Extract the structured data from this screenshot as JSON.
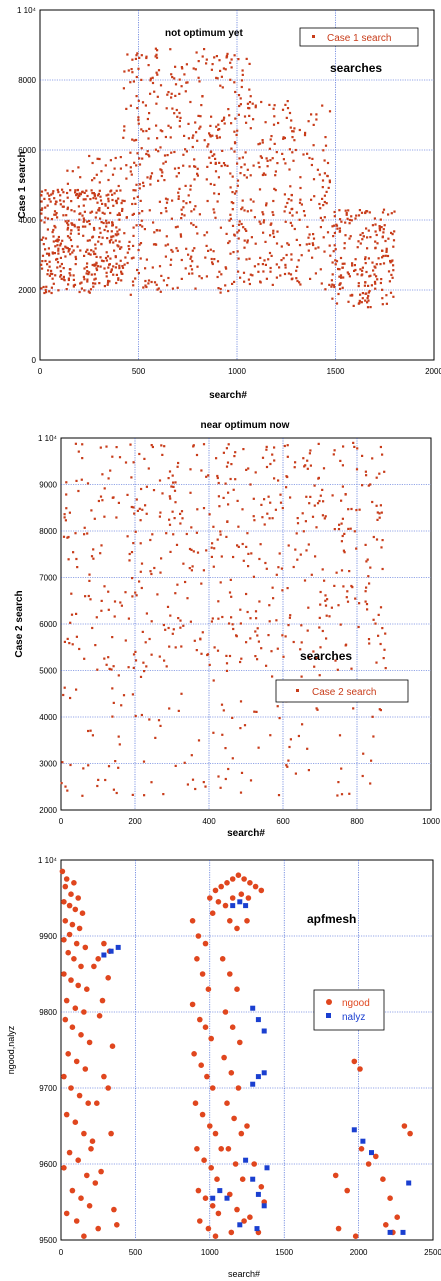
{
  "colors": {
    "case": "#c83c1a",
    "grid": "#2a4fcf",
    "nalyz": "#1a3fd0",
    "ngood": "#e0461e"
  },
  "chart_data": [
    {
      "type": "scatter",
      "title": "not optimum yet",
      "annotation": "searches",
      "xlabel": "search#",
      "ylabel": "Case 1 search",
      "xlim": [
        0,
        2000
      ],
      "ylim": [
        0,
        10000
      ],
      "xticks": [
        "0",
        "500",
        "1000",
        "1500",
        "2000"
      ],
      "yticks": [
        "0",
        "2000",
        "4000",
        "6000",
        "8000",
        "1 10⁴"
      ],
      "legend_position": "top-right",
      "series": [
        {
          "name": "Case 1 search",
          "marker": "square-small",
          "clusters": [
            {
              "x": [
                0,
                420
              ],
              "y": [
                1900,
                4900
              ],
              "density": 340
            },
            {
              "x": [
                80,
                430
              ],
              "y": [
                2400,
                5900
              ],
              "density": 90
            },
            {
              "x": [
                420,
                1080
              ],
              "y": [
                1800,
                8900
              ],
              "density": 520
            },
            {
              "x": [
                1080,
                1480
              ],
              "y": [
                2000,
                7400
              ],
              "density": 230
            },
            {
              "x": [
                1480,
                1800
              ],
              "y": [
                1500,
                4300
              ],
              "density": 210
            }
          ]
        }
      ]
    },
    {
      "type": "scatter",
      "title": "near optimum now",
      "annotation": "searches",
      "xlabel": "search#",
      "ylabel": "Case 2 search",
      "xlim": [
        0,
        1000
      ],
      "ylim": [
        2000,
        10000
      ],
      "xticks": [
        "0",
        "200",
        "400",
        "600",
        "800",
        "1000"
      ],
      "yticks": [
        "2000",
        "3000",
        "4000",
        "5000",
        "6000",
        "7000",
        "8000",
        "9000",
        "1 10⁴"
      ],
      "legend_position": "center-right",
      "series": [
        {
          "name": "Case 2 search",
          "marker": "square-small",
          "clusters": [
            {
              "x": [
                0,
                880
              ],
              "y": [
                5000,
                9900
              ],
              "density": 560
            },
            {
              "x": [
                0,
                880
              ],
              "y": [
                2300,
                5000
              ],
              "density": 120
            }
          ]
        }
      ]
    },
    {
      "type": "scatter",
      "title": "",
      "annotation": "apfmesh",
      "xlabel": "search#",
      "ylabel": "ngood,nalyz",
      "xlim": [
        0,
        2600
      ],
      "ylim": [
        9500,
        10000
      ],
      "xticks": [
        "0",
        "500",
        "1000",
        "1500",
        "2000",
        "2500"
      ],
      "yticks": [
        "9500",
        "9600",
        "9700",
        "9800",
        "9900",
        "1 10⁴"
      ],
      "legend_position": "right",
      "series": [
        {
          "name": "ngood",
          "marker": "circle",
          "points": [
            [
              10,
              9985
            ],
            [
              40,
              9975
            ],
            [
              90,
              9970
            ],
            [
              30,
              9965
            ],
            [
              70,
              9955
            ],
            [
              120,
              9950
            ],
            [
              20,
              9945
            ],
            [
              60,
              9940
            ],
            [
              100,
              9935
            ],
            [
              150,
              9930
            ],
            [
              30,
              9920
            ],
            [
              80,
              9915
            ],
            [
              130,
              9910
            ],
            [
              60,
              9902
            ],
            [
              20,
              9895
            ],
            [
              110,
              9890
            ],
            [
              170,
              9885
            ],
            [
              50,
              9878
            ],
            [
              90,
              9870
            ],
            [
              140,
              9860
            ],
            [
              20,
              9850
            ],
            [
              70,
              9842
            ],
            [
              120,
              9835
            ],
            [
              180,
              9830
            ],
            [
              40,
              9815
            ],
            [
              100,
              9805
            ],
            [
              160,
              9800
            ],
            [
              30,
              9790
            ],
            [
              80,
              9780
            ],
            [
              140,
              9770
            ],
            [
              200,
              9760
            ],
            [
              50,
              9745
            ],
            [
              110,
              9735
            ],
            [
              170,
              9725
            ],
            [
              20,
              9715
            ],
            [
              70,
              9700
            ],
            [
              130,
              9690
            ],
            [
              190,
              9680
            ],
            [
              40,
              9665
            ],
            [
              100,
              9655
            ],
            [
              160,
              9640
            ],
            [
              220,
              9630
            ],
            [
              60,
              9615
            ],
            [
              120,
              9605
            ],
            [
              20,
              9595
            ],
            [
              180,
              9585
            ],
            [
              240,
              9575
            ],
            [
              80,
              9565
            ],
            [
              140,
              9555
            ],
            [
              200,
              9545
            ],
            [
              40,
              9535
            ],
            [
              110,
              9525
            ],
            [
              260,
              9515
            ],
            [
              160,
              9505
            ],
            [
              300,
              9890
            ],
            [
              340,
              9880
            ],
            [
              260,
              9870
            ],
            [
              330,
              9845
            ],
            [
              290,
              9815
            ],
            [
              360,
              9755
            ],
            [
              300,
              9715
            ],
            [
              250,
              9680
            ],
            [
              350,
              9640
            ],
            [
              280,
              9590
            ],
            [
              370,
              9540
            ],
            [
              230,
              9860
            ],
            [
              270,
              9795
            ],
            [
              330,
              9700
            ],
            [
              210,
              9620
            ],
            [
              390,
              9520
            ],
            [
              920,
              9920
            ],
            [
              960,
              9900
            ],
            [
              1010,
              9890
            ],
            [
              950,
              9870
            ],
            [
              990,
              9850
            ],
            [
              1030,
              9830
            ],
            [
              920,
              9810
            ],
            [
              970,
              9790
            ],
            [
              1010,
              9780
            ],
            [
              1050,
              9765
            ],
            [
              930,
              9745
            ],
            [
              980,
              9730
            ],
            [
              1020,
              9715
            ],
            [
              1060,
              9700
            ],
            [
              940,
              9680
            ],
            [
              990,
              9665
            ],
            [
              1040,
              9650
            ],
            [
              1080,
              9640
            ],
            [
              950,
              9620
            ],
            [
              1000,
              9605
            ],
            [
              1050,
              9595
            ],
            [
              1090,
              9580
            ],
            [
              960,
              9565
            ],
            [
              1010,
              9555
            ],
            [
              1060,
              9545
            ],
            [
              1100,
              9535
            ],
            [
              970,
              9525
            ],
            [
              1030,
              9515
            ],
            [
              1080,
              9505
            ],
            [
              1120,
              9620
            ],
            [
              1040,
              9950
            ],
            [
              1080,
              9960
            ],
            [
              1120,
              9965
            ],
            [
              1160,
              9970
            ],
            [
              1200,
              9975
            ],
            [
              1240,
              9980
            ],
            [
              1280,
              9975
            ],
            [
              1320,
              9970
            ],
            [
              1360,
              9965
            ],
            [
              1400,
              9960
            ],
            [
              1100,
              9945
            ],
            [
              1150,
              9940
            ],
            [
              1200,
              9950
            ],
            [
              1260,
              9955
            ],
            [
              1310,
              9950
            ],
            [
              1060,
              9930
            ],
            [
              1180,
              9920
            ],
            [
              1230,
              9910
            ],
            [
              1300,
              9920
            ],
            [
              1130,
              9870
            ],
            [
              1180,
              9850
            ],
            [
              1230,
              9830
            ],
            [
              1150,
              9800
            ],
            [
              1200,
              9780
            ],
            [
              1250,
              9760
            ],
            [
              1140,
              9740
            ],
            [
              1190,
              9720
            ],
            [
              1240,
              9700
            ],
            [
              1160,
              9680
            ],
            [
              1210,
              9660
            ],
            [
              1260,
              9640
            ],
            [
              1170,
              9620
            ],
            [
              1220,
              9600
            ],
            [
              1270,
              9580
            ],
            [
              1180,
              9560
            ],
            [
              1230,
              9540
            ],
            [
              1280,
              9525
            ],
            [
              1190,
              9510
            ],
            [
              1350,
              9600
            ],
            [
              1400,
              9570
            ],
            [
              1320,
              9530
            ],
            [
              1380,
              9510
            ],
            [
              1420,
              9550
            ],
            [
              1300,
              9650
            ],
            [
              2050,
              9735
            ],
            [
              2090,
              9725
            ],
            [
              1920,
              9585
            ],
            [
              2000,
              9565
            ],
            [
              2100,
              9620
            ],
            [
              2200,
              9610
            ],
            [
              2150,
              9600
            ],
            [
              2250,
              9580
            ],
            [
              2300,
              9555
            ],
            [
              2350,
              9530
            ],
            [
              2270,
              9520
            ],
            [
              2320,
              9510
            ],
            [
              2400,
              9650
            ],
            [
              2440,
              9640
            ],
            [
              1940,
              9515
            ],
            [
              2060,
              9505
            ]
          ]
        },
        {
          "name": "nalyz",
          "marker": "square",
          "points": [
            [
              300,
              9875
            ],
            [
              350,
              9880
            ],
            [
              400,
              9885
            ],
            [
              1200,
              9940
            ],
            [
              1250,
              9945
            ],
            [
              1290,
              9940
            ],
            [
              1340,
              9805
            ],
            [
              1380,
              9790
            ],
            [
              1420,
              9775
            ],
            [
              1340,
              9705
            ],
            [
              1380,
              9715
            ],
            [
              1420,
              9720
            ],
            [
              1290,
              9605
            ],
            [
              1340,
              9580
            ],
            [
              1380,
              9560
            ],
            [
              1420,
              9545
            ],
            [
              1060,
              9555
            ],
            [
              1110,
              9565
            ],
            [
              1160,
              9555
            ],
            [
              1250,
              9520
            ],
            [
              1370,
              9515
            ],
            [
              2050,
              9645
            ],
            [
              2110,
              9630
            ],
            [
              2170,
              9615
            ],
            [
              2300,
              9510
            ],
            [
              2390,
              9510
            ],
            [
              2430,
              9575
            ],
            [
              1440,
              9595
            ]
          ]
        }
      ]
    }
  ]
}
